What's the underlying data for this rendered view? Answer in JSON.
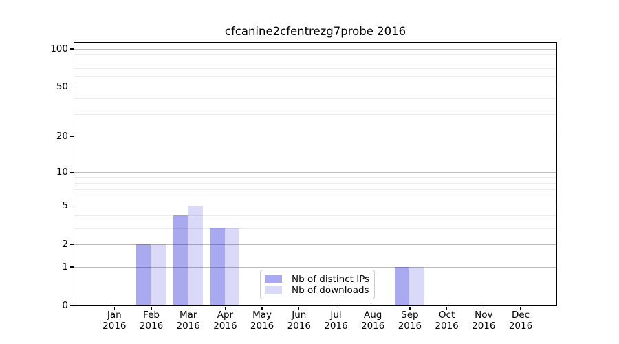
{
  "title": "cfcanine2cfentrezg7probe 2016",
  "chart_data": {
    "type": "bar",
    "title": "cfcanine2cfentrezg7probe 2016",
    "categories": [
      "Jan 2016",
      "Feb 2016",
      "Mar 2016",
      "Apr 2016",
      "May 2016",
      "Jun 2016",
      "Jul 2016",
      "Aug 2016",
      "Sep 2016",
      "Oct 2016",
      "Nov 2016",
      "Dec 2016"
    ],
    "series": [
      {
        "name": "Nb of distinct IPs",
        "color": "rgba(8,8,210,0.35)",
        "values": [
          0,
          2,
          4,
          3,
          0,
          0,
          0,
          0,
          1,
          0,
          0,
          0
        ]
      },
      {
        "name": "Nb of downloads",
        "color": "rgba(8,8,210,0.15)",
        "values": [
          0,
          2,
          5,
          3,
          0,
          0,
          0,
          0,
          1,
          0,
          0,
          0
        ]
      }
    ],
    "xlabel": "",
    "ylabel": "",
    "y_scale": "log10(1+y)",
    "ylim": [
      0,
      112
    ],
    "y_major_ticks": [
      0,
      1,
      2,
      5,
      10,
      20,
      50,
      100
    ],
    "y_minor_ticks": [
      3,
      4,
      6,
      7,
      8,
      9,
      30,
      40,
      60,
      70,
      80,
      90
    ],
    "grid": "horizontal major+minor",
    "legend_position": "lower center"
  },
  "colors": {
    "bar_distinct_ips": "rgba(8,8,210,0.35)",
    "bar_downloads": "rgba(8,8,210,0.15)",
    "grid_major": "#bcbcbc",
    "grid_minor": "#ececec",
    "spine": "#000000",
    "legend_border": "#cccccc",
    "background": "#ffffff"
  }
}
